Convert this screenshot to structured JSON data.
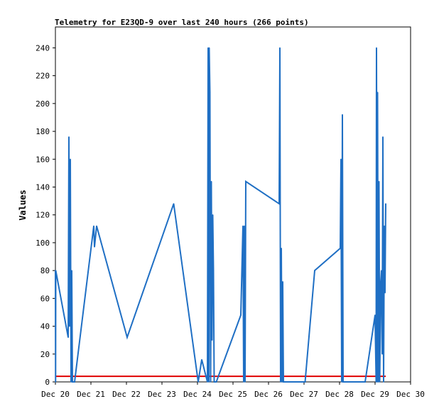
{
  "chart_data": {
    "type": "line",
    "title": "Telemetry for E23QD-9 over last 240 hours (266 points)",
    "xlabel": "",
    "ylabel": "Values",
    "xlim": [
      20,
      30
    ],
    "ylim": [
      0,
      255
    ],
    "x_ticks": [
      {
        "value": 20,
        "label": "Dec 20"
      },
      {
        "value": 21,
        "label": "Dec 21"
      },
      {
        "value": 22,
        "label": "Dec 22"
      },
      {
        "value": 23,
        "label": "Dec 23"
      },
      {
        "value": 24,
        "label": "Dec 24"
      },
      {
        "value": 25,
        "label": "Dec 25"
      },
      {
        "value": 26,
        "label": "Dec 26"
      },
      {
        "value": 27,
        "label": "Dec 27"
      },
      {
        "value": 28,
        "label": "Dec 28"
      },
      {
        "value": 29,
        "label": "Dec 29"
      },
      {
        "value": 30,
        "label": "Dec 30"
      }
    ],
    "y_ticks": [
      0,
      20,
      40,
      60,
      80,
      100,
      120,
      140,
      160,
      180,
      200,
      220,
      240
    ],
    "grid": false,
    "colors": {
      "series": "#1f6fc4",
      "threshold": "#e00000",
      "axis": "#000000"
    },
    "threshold": {
      "value": 4
    },
    "series": [
      {
        "points": [
          [
            20.0,
            80
          ],
          [
            20.005,
            0
          ],
          [
            20.01,
            80
          ],
          [
            20.36,
            32
          ],
          [
            20.38,
            176
          ],
          [
            20.4,
            40
          ],
          [
            20.42,
            160
          ],
          [
            20.44,
            0
          ],
          [
            20.46,
            80
          ],
          [
            20.48,
            0
          ],
          [
            20.54,
            0
          ],
          [
            21.08,
            112
          ],
          [
            21.1,
            97
          ],
          [
            21.16,
            112
          ],
          [
            22.02,
            32
          ],
          [
            23.33,
            128
          ],
          [
            24.02,
            0
          ],
          [
            24.12,
            16
          ],
          [
            24.28,
            0
          ],
          [
            24.3,
            240
          ],
          [
            24.32,
            0
          ],
          [
            24.33,
            240
          ],
          [
            24.35,
            208
          ],
          [
            24.37,
            0
          ],
          [
            24.39,
            144
          ],
          [
            24.41,
            30
          ],
          [
            24.43,
            120
          ],
          [
            24.45,
            80
          ],
          [
            24.47,
            0
          ],
          [
            24.53,
            0
          ],
          [
            25.22,
            48
          ],
          [
            25.28,
            112
          ],
          [
            25.3,
            0
          ],
          [
            25.32,
            112
          ],
          [
            25.34,
            0
          ],
          [
            25.36,
            144
          ],
          [
            26.3,
            128
          ],
          [
            26.32,
            240
          ],
          [
            26.34,
            0
          ],
          [
            26.36,
            96
          ],
          [
            26.38,
            0
          ],
          [
            26.4,
            72
          ],
          [
            26.42,
            0
          ],
          [
            27.03,
            0
          ],
          [
            27.3,
            80
          ],
          [
            28.02,
            96
          ],
          [
            28.04,
            160
          ],
          [
            28.06,
            0
          ],
          [
            28.08,
            192
          ],
          [
            28.1,
            0
          ],
          [
            28.72,
            0
          ],
          [
            29.0,
            48
          ],
          [
            29.03,
            0
          ],
          [
            29.04,
            240
          ],
          [
            29.06,
            0
          ],
          [
            29.07,
            208
          ],
          [
            29.09,
            0
          ],
          [
            29.11,
            144
          ],
          [
            29.13,
            0
          ],
          [
            29.16,
            72
          ],
          [
            29.18,
            80
          ],
          [
            29.2,
            20
          ],
          [
            29.22,
            176
          ],
          [
            29.24,
            0
          ],
          [
            29.26,
            112
          ],
          [
            29.28,
            64
          ],
          [
            29.3,
            128
          ]
        ]
      }
    ]
  }
}
